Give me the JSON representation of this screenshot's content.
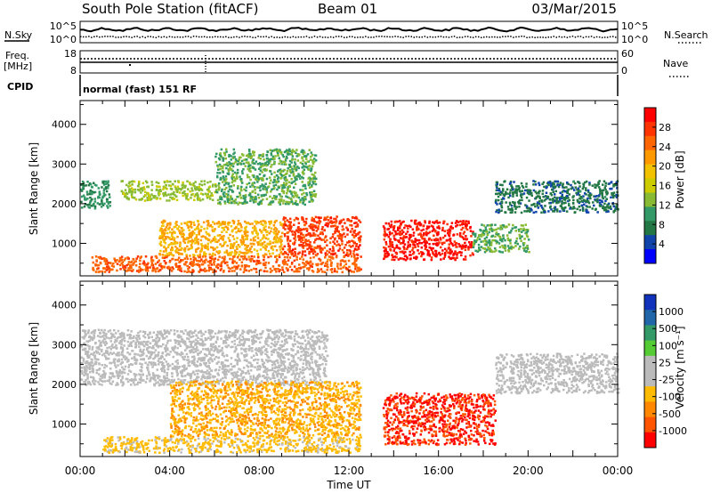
{
  "header": {
    "station": "South Pole Station (fitACF)",
    "beam": "Beam 01",
    "date": "03/Mar/2015"
  },
  "noise_panel": {
    "left_label": "N.Sky",
    "right_label": "N.Search",
    "left_ticks": [
      "10^5",
      "10^0"
    ],
    "right_ticks": [
      "10^5",
      "10^0"
    ]
  },
  "freq_panel": {
    "left_label_1": "Freq.",
    "left_label_2": "[MHz]",
    "right_label": "Nave",
    "left_ticks": [
      "18",
      "8"
    ],
    "right_ticks": [
      "60",
      "0"
    ]
  },
  "cpid_panel": {
    "label": "CPID",
    "text": "normal (fast) 151 RF"
  },
  "x_axis": {
    "label": "Time UT",
    "ticks": [
      "00:00",
      "04:00",
      "08:00",
      "12:00",
      "16:00",
      "20:00",
      "00:00"
    ]
  },
  "power_panel": {
    "ylabel": "Slant Range [km]",
    "yticks": [
      "4000",
      "3000",
      "2000",
      "1000"
    ],
    "cbar_label": "Power [dB]",
    "cbar_ticks": [
      "28",
      "24",
      "20",
      "16",
      "12",
      "8",
      "4"
    ],
    "cbar_colors": [
      "#ff0000",
      "#ff3300",
      "#ff6600",
      "#ff9900",
      "#f2c200",
      "#cccc00",
      "#88bb33",
      "#339966",
      "#227744",
      "#1144aa",
      "#0000ff"
    ]
  },
  "velocity_panel": {
    "ylabel": "Slant Range [km]",
    "yticks": [
      "4000",
      "3000",
      "2000",
      "1000"
    ],
    "cbar_label": "Velocity [m s⁻¹]",
    "cbar_ticks": [
      "1000",
      "500",
      "100",
      "25",
      "-25",
      "-100",
      "-500",
      "-1000"
    ],
    "cbar_colors": [
      "#1133bb",
      "#2266aa",
      "#339966",
      "#55cc33",
      "#bbbbbb",
      "#bbbbbb",
      "#ffbb00",
      "#ff8800",
      "#ff5500",
      "#ff0000"
    ]
  },
  "chart_data": [
    {
      "type": "heatmap",
      "title": "Power",
      "xlabel": "Time UT",
      "ylabel": "Slant Range [km]",
      "xlim": [
        0,
        24
      ],
      "ylim": [
        180,
        4600
      ],
      "colorbar": {
        "label": "Power [dB]",
        "ticks": [
          4,
          8,
          12,
          16,
          20,
          24,
          28
        ]
      },
      "regions": [
        {
          "t": [
            0.0,
            1.3
          ],
          "r": [
            1900,
            2600
          ],
          "value": 10
        },
        {
          "t": [
            1.8,
            6.0
          ],
          "r": [
            2100,
            2600
          ],
          "value": 14
        },
        {
          "t": [
            6.0,
            10.5
          ],
          "r": [
            2000,
            3400
          ],
          "value": 12
        },
        {
          "t": [
            3.5,
            9.0
          ],
          "r": [
            700,
            1600
          ],
          "value": 20
        },
        {
          "t": [
            9.0,
            12.5
          ],
          "r": [
            700,
            1700
          ],
          "value": 26
        },
        {
          "t": [
            0.5,
            12.5
          ],
          "r": [
            300,
            700
          ],
          "value": 24
        },
        {
          "t": [
            13.5,
            17.5
          ],
          "r": [
            600,
            1600
          ],
          "value": 28
        },
        {
          "t": [
            17.5,
            20.0
          ],
          "r": [
            800,
            1500
          ],
          "value": 12
        },
        {
          "t": [
            18.5,
            24.0
          ],
          "r": [
            1800,
            2600
          ],
          "value": 8
        }
      ]
    },
    {
      "type": "heatmap",
      "title": "Velocity",
      "xlabel": "Time UT",
      "ylabel": "Slant Range [km]",
      "xlim": [
        0,
        24
      ],
      "ylim": [
        180,
        4600
      ],
      "colorbar": {
        "label": "Velocity [m s-1]",
        "ticks": [
          -1000,
          -500,
          -100,
          -25,
          25,
          100,
          500,
          1000
        ]
      },
      "regions": [
        {
          "t": [
            0.0,
            11.0
          ],
          "r": [
            2000,
            3400
          ],
          "value": 0
        },
        {
          "t": [
            4.0,
            12.5
          ],
          "r": [
            700,
            2100
          ],
          "value": -400
        },
        {
          "t": [
            1.0,
            12.5
          ],
          "r": [
            300,
            700
          ],
          "value": -300
        },
        {
          "t": [
            13.5,
            18.5
          ],
          "r": [
            500,
            1800
          ],
          "value": -900
        },
        {
          "t": [
            18.5,
            24.0
          ],
          "r": [
            1800,
            2800
          ],
          "value": 0
        }
      ]
    }
  ]
}
